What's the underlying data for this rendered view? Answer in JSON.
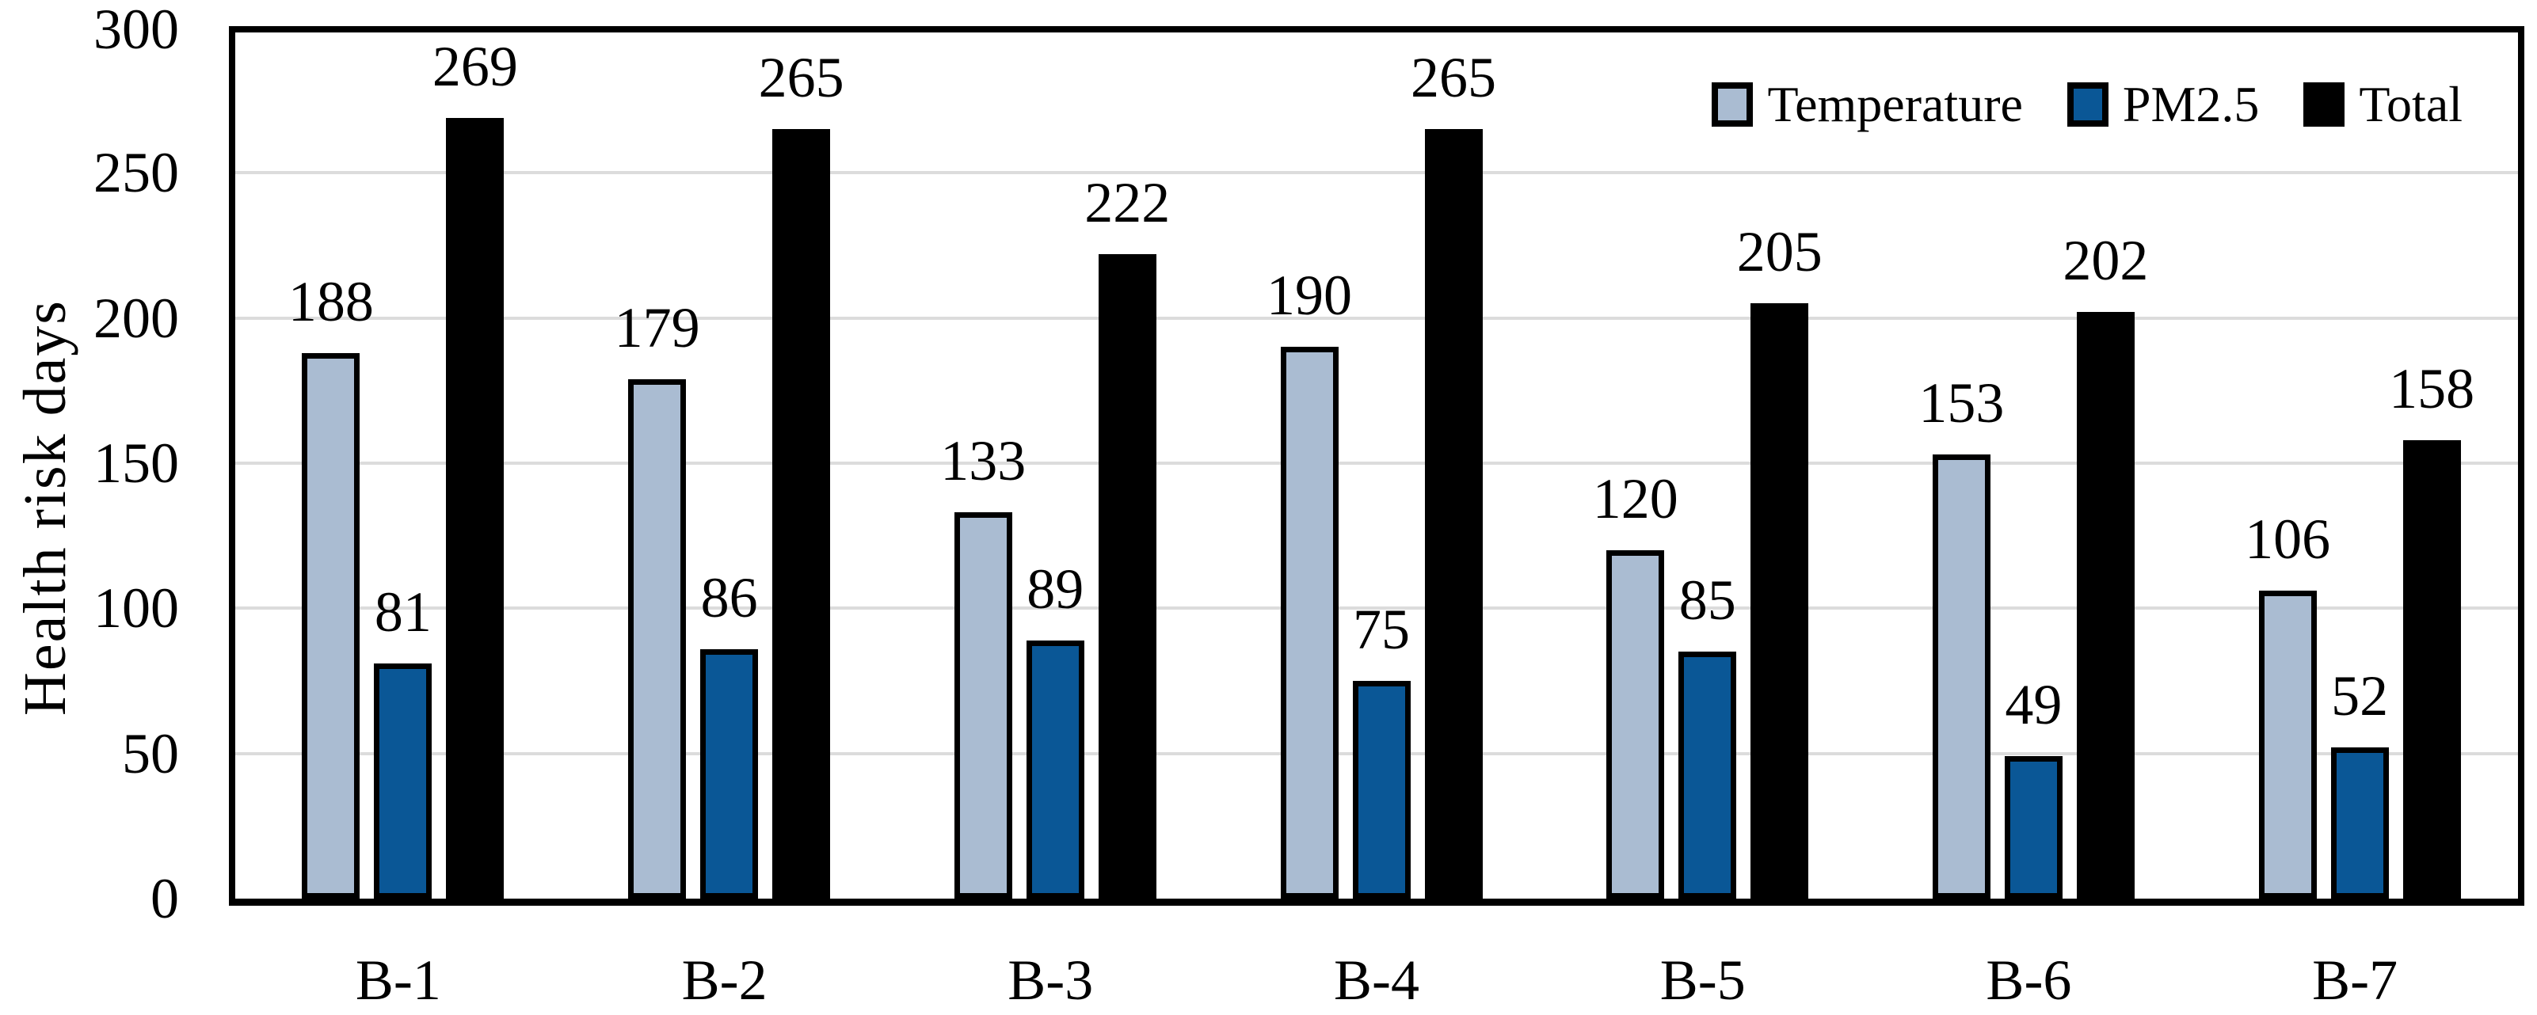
{
  "chart_data": {
    "type": "bar",
    "title": "",
    "ylabel": "Health risk days",
    "xlabel": "",
    "categories": [
      "B-1",
      "B-2",
      "B-3",
      "B-4",
      "B-5",
      "B-6",
      "B-7"
    ],
    "series": [
      {
        "name": "Temperature",
        "color": "#AABCD2",
        "border_color": "#000000",
        "values": [
          188,
          179,
          133,
          190,
          120,
          153,
          106
        ]
      },
      {
        "name": "PM2.5",
        "color": "#0A5796",
        "border_color": "#000000",
        "values": [
          81,
          86,
          89,
          75,
          85,
          49,
          52
        ]
      },
      {
        "name": "Total",
        "color": "#000000",
        "border_color": "#000000",
        "values": [
          269,
          265,
          222,
          265,
          205,
          202,
          158
        ]
      }
    ],
    "ylim": [
      0,
      300
    ],
    "yticks": [
      0,
      50,
      100,
      150,
      200,
      250,
      300
    ],
    "grid": true,
    "gridline_color": "#DCDCDC",
    "axis_color": "#000000",
    "data_labels": true,
    "legend": {
      "position": "top-right-inside",
      "entries": [
        "Temperature",
        "PM2.5",
        "Total"
      ]
    }
  }
}
